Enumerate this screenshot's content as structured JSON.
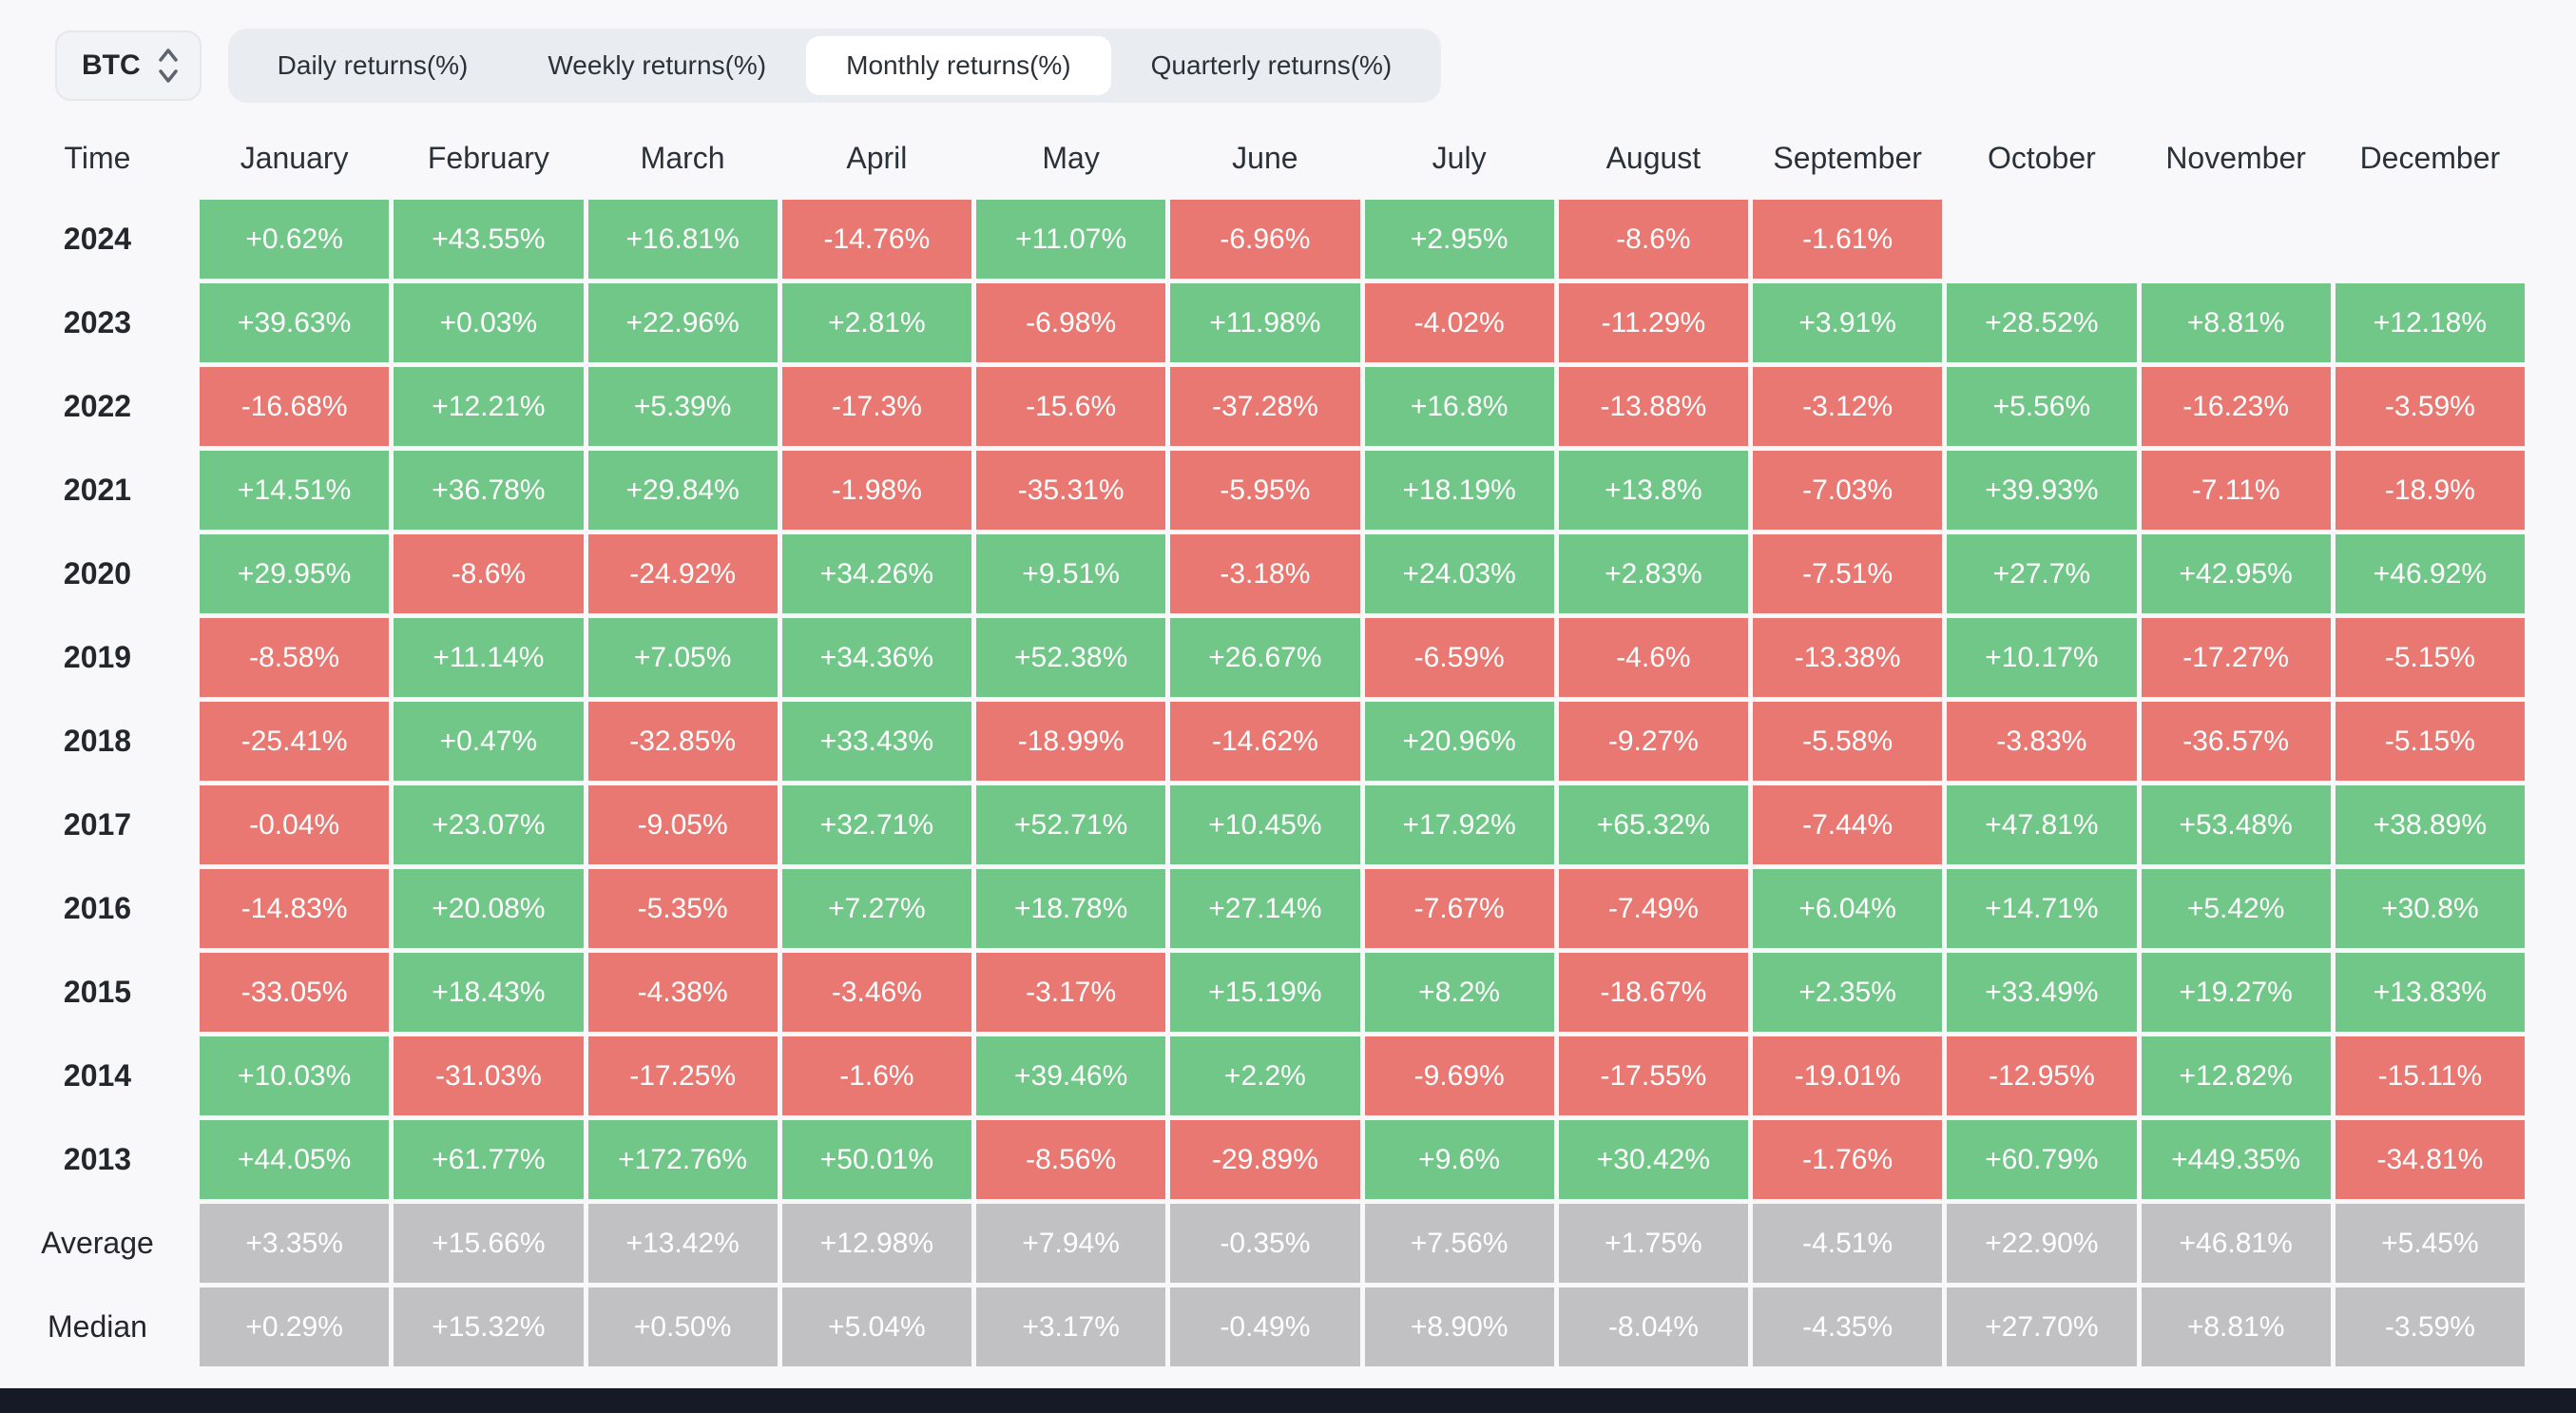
{
  "header": {
    "symbol_selector": {
      "value": "BTC",
      "icon": "updown-chevron-icon"
    },
    "tabs": [
      {
        "label": "Daily returns(%)",
        "selected": false
      },
      {
        "label": "Weekly returns(%)",
        "selected": false
      },
      {
        "label": "Monthly returns(%)",
        "selected": true
      },
      {
        "label": "Quarterly returns(%)",
        "selected": false
      }
    ]
  },
  "chart_data": {
    "type": "table",
    "title": "Monthly returns(%)",
    "columns": [
      "Time",
      "January",
      "February",
      "March",
      "April",
      "May",
      "June",
      "July",
      "August",
      "September",
      "October",
      "November",
      "December"
    ],
    "rows": [
      {
        "label": "2024",
        "summary": false,
        "values": [
          "+0.62%",
          "+43.55%",
          "+16.81%",
          "-14.76%",
          "+11.07%",
          "-6.96%",
          "+2.95%",
          "-8.6%",
          "-1.61%",
          "",
          "",
          ""
        ]
      },
      {
        "label": "2023",
        "summary": false,
        "values": [
          "+39.63%",
          "+0.03%",
          "+22.96%",
          "+2.81%",
          "-6.98%",
          "+11.98%",
          "-4.02%",
          "-11.29%",
          "+3.91%",
          "+28.52%",
          "+8.81%",
          "+12.18%"
        ]
      },
      {
        "label": "2022",
        "summary": false,
        "values": [
          "-16.68%",
          "+12.21%",
          "+5.39%",
          "-17.3%",
          "-15.6%",
          "-37.28%",
          "+16.8%",
          "-13.88%",
          "-3.12%",
          "+5.56%",
          "-16.23%",
          "-3.59%"
        ]
      },
      {
        "label": "2021",
        "summary": false,
        "values": [
          "+14.51%",
          "+36.78%",
          "+29.84%",
          "-1.98%",
          "-35.31%",
          "-5.95%",
          "+18.19%",
          "+13.8%",
          "-7.03%",
          "+39.93%",
          "-7.11%",
          "-18.9%"
        ]
      },
      {
        "label": "2020",
        "summary": false,
        "values": [
          "+29.95%",
          "-8.6%",
          "-24.92%",
          "+34.26%",
          "+9.51%",
          "-3.18%",
          "+24.03%",
          "+2.83%",
          "-7.51%",
          "+27.7%",
          "+42.95%",
          "+46.92%"
        ]
      },
      {
        "label": "2019",
        "summary": false,
        "values": [
          "-8.58%",
          "+11.14%",
          "+7.05%",
          "+34.36%",
          "+52.38%",
          "+26.67%",
          "-6.59%",
          "-4.6%",
          "-13.38%",
          "+10.17%",
          "-17.27%",
          "-5.15%"
        ]
      },
      {
        "label": "2018",
        "summary": false,
        "values": [
          "-25.41%",
          "+0.47%",
          "-32.85%",
          "+33.43%",
          "-18.99%",
          "-14.62%",
          "+20.96%",
          "-9.27%",
          "-5.58%",
          "-3.83%",
          "-36.57%",
          "-5.15%"
        ]
      },
      {
        "label": "2017",
        "summary": false,
        "values": [
          "-0.04%",
          "+23.07%",
          "-9.05%",
          "+32.71%",
          "+52.71%",
          "+10.45%",
          "+17.92%",
          "+65.32%",
          "-7.44%",
          "+47.81%",
          "+53.48%",
          "+38.89%"
        ]
      },
      {
        "label": "2016",
        "summary": false,
        "values": [
          "-14.83%",
          "+20.08%",
          "-5.35%",
          "+7.27%",
          "+18.78%",
          "+27.14%",
          "-7.67%",
          "-7.49%",
          "+6.04%",
          "+14.71%",
          "+5.42%",
          "+30.8%"
        ]
      },
      {
        "label": "2015",
        "summary": false,
        "values": [
          "-33.05%",
          "+18.43%",
          "-4.38%",
          "-3.46%",
          "-3.17%",
          "+15.19%",
          "+8.2%",
          "-18.67%",
          "+2.35%",
          "+33.49%",
          "+19.27%",
          "+13.83%"
        ]
      },
      {
        "label": "2014",
        "summary": false,
        "values": [
          "+10.03%",
          "-31.03%",
          "-17.25%",
          "-1.6%",
          "+39.46%",
          "+2.2%",
          "-9.69%",
          "-17.55%",
          "-19.01%",
          "-12.95%",
          "+12.82%",
          "-15.11%"
        ]
      },
      {
        "label": "2013",
        "summary": false,
        "values": [
          "+44.05%",
          "+61.77%",
          "+172.76%",
          "+50.01%",
          "-8.56%",
          "-29.89%",
          "+9.6%",
          "+30.42%",
          "-1.76%",
          "+60.79%",
          "+449.35%",
          "-34.81%"
        ]
      },
      {
        "label": "Average",
        "summary": true,
        "values": [
          "+3.35%",
          "+15.66%",
          "+13.42%",
          "+12.98%",
          "+7.94%",
          "-0.35%",
          "+7.56%",
          "+1.75%",
          "-4.51%",
          "+22.90%",
          "+46.81%",
          "+5.45%"
        ]
      },
      {
        "label": "Median",
        "summary": true,
        "values": [
          "+0.29%",
          "+15.32%",
          "+0.50%",
          "+5.04%",
          "+3.17%",
          "-0.49%",
          "+8.90%",
          "-8.04%",
          "-4.35%",
          "+27.70%",
          "+8.81%",
          "-3.59%"
        ]
      }
    ]
  },
  "colors": {
    "positive": "#70c787",
    "negative": "#ea7872",
    "summary": "#c1c1c3",
    "bg": "#f8f8fa",
    "tabbar": "#e9edf2",
    "footer": "#151a26"
  }
}
